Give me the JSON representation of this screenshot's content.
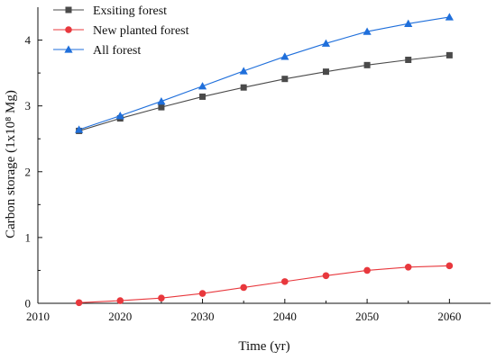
{
  "chart_data": {
    "type": "line",
    "title": "",
    "xlabel": "Time (yr)",
    "ylabel": "Carbon storage (1x10⁸ Mg)",
    "xlim": [
      2010,
      2065
    ],
    "ylim": [
      0,
      4.5
    ],
    "x_ticks": [
      "2010",
      "2020",
      "2030",
      "2040",
      "2050",
      "2060"
    ],
    "y_ticks": [
      "0",
      "1",
      "2",
      "3",
      "4"
    ],
    "grid": false,
    "legend_position": "top-left",
    "x": [
      2015,
      2020,
      2025,
      2030,
      2035,
      2040,
      2045,
      2050,
      2055,
      2060
    ],
    "series": [
      {
        "name": "Exsiting forest",
        "color": "#4a4a4a",
        "marker": "square",
        "values": [
          2.62,
          2.81,
          2.98,
          3.14,
          3.28,
          3.41,
          3.52,
          3.62,
          3.7,
          3.77
        ]
      },
      {
        "name": "New planted forest",
        "color": "#e8383d",
        "marker": "circle",
        "values": [
          0.01,
          0.04,
          0.08,
          0.15,
          0.24,
          0.33,
          0.42,
          0.5,
          0.55,
          0.57
        ]
      },
      {
        "name": "All forest",
        "color": "#1f6fdb",
        "marker": "triangle",
        "values": [
          2.64,
          2.85,
          3.07,
          3.3,
          3.53,
          3.75,
          3.95,
          4.13,
          4.25,
          4.35
        ]
      }
    ]
  }
}
